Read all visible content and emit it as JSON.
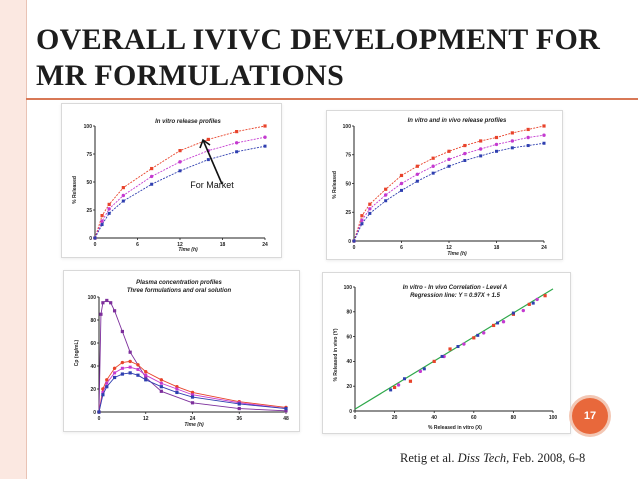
{
  "slide": {
    "title_line1": "OVERALL IVIVC DEVELOPMENT FOR",
    "title_line2": "MR FORMULATIONS",
    "page_number": "17",
    "citation_author": "Retig et al.",
    "citation_journal": "Diss Tech,",
    "citation_rest": "Feb. 2008, 6-8",
    "annotation": "For Market",
    "colors": {
      "red": "#e8432b",
      "magenta": "#c43ad0",
      "blue": "#2f3fb0",
      "purple": "#7d2f9c",
      "green": "#2ea84a",
      "accent": "#e8683b"
    }
  },
  "chart_data": [
    {
      "type": "line",
      "title": "In vitro release profiles",
      "xlabel": "Time (h)",
      "ylabel": "% Released",
      "xlim": [
        0,
        24
      ],
      "ylim": [
        0,
        100
      ],
      "xticks": [
        "0",
        "6",
        "12",
        "18",
        "24"
      ],
      "yticks": [
        "0",
        "25",
        "50",
        "75",
        "100"
      ],
      "series": [
        {
          "color": "#e8432b",
          "x": [
            0,
            1,
            2,
            4,
            8,
            12,
            16,
            20,
            24
          ],
          "y": [
            0,
            20,
            30,
            45,
            62,
            78,
            88,
            95,
            100
          ]
        },
        {
          "color": "#c43ad0",
          "x": [
            0,
            1,
            2,
            4,
            8,
            12,
            16,
            20,
            24
          ],
          "y": [
            0,
            15,
            26,
            38,
            55,
            68,
            78,
            85,
            90
          ]
        },
        {
          "color": "#2f3fb0",
          "x": [
            0,
            1,
            2,
            4,
            8,
            12,
            16,
            20,
            24
          ],
          "y": [
            0,
            12,
            22,
            33,
            48,
            60,
            70,
            77,
            82
          ]
        }
      ]
    },
    {
      "type": "line",
      "title": "In vitro and in vivo release profiles",
      "xlabel": "Time (h)",
      "ylabel": "% Released",
      "xlim": [
        0,
        24
      ],
      "ylim": [
        0,
        100
      ],
      "xticks": [
        "0",
        "6",
        "12",
        "18",
        "24"
      ],
      "yticks": [
        "0",
        "25",
        "50",
        "75",
        "100"
      ],
      "series": [
        {
          "color": "#e8432b",
          "x": [
            0,
            1,
            2,
            4,
            6,
            8,
            10,
            12,
            14,
            16,
            18,
            20,
            22,
            24
          ],
          "y": [
            0,
            22,
            32,
            45,
            57,
            65,
            72,
            78,
            83,
            87,
            90,
            94,
            97,
            100
          ]
        },
        {
          "color": "#c43ad0",
          "x": [
            0,
            1,
            2,
            4,
            6,
            8,
            10,
            12,
            14,
            16,
            18,
            20,
            22,
            24
          ],
          "y": [
            0,
            18,
            28,
            40,
            50,
            58,
            65,
            71,
            76,
            80,
            84,
            87,
            90,
            92
          ]
        },
        {
          "color": "#2f3fb0",
          "x": [
            0,
            1,
            2,
            4,
            6,
            8,
            10,
            12,
            14,
            16,
            18,
            20,
            22,
            24
          ],
          "y": [
            0,
            15,
            24,
            35,
            44,
            52,
            59,
            65,
            70,
            74,
            78,
            81,
            83,
            85
          ]
        }
      ]
    },
    {
      "type": "line",
      "title": "Plasma concentration profiles",
      "subtitle": "Three formulations and oral solution",
      "xlabel": "Time (h)",
      "ylabel": "Cp (ng/mL)",
      "xlim": [
        0,
        48
      ],
      "ylim": [
        0,
        100
      ],
      "xticks": [
        "0",
        "12",
        "24",
        "36",
        "48"
      ],
      "yticks": [
        "0",
        "20",
        "40",
        "60",
        "80",
        "100"
      ],
      "series": [
        {
          "color": "#7d2f9c",
          "x": [
            0,
            0.5,
            1,
            2,
            3,
            4,
            6,
            8,
            12,
            16,
            24,
            36,
            48
          ],
          "y": [
            0,
            85,
            95,
            97,
            95,
            88,
            70,
            52,
            30,
            18,
            8,
            3,
            1
          ]
        },
        {
          "color": "#e8432b",
          "x": [
            0,
            1,
            2,
            4,
            6,
            8,
            10,
            12,
            16,
            20,
            24,
            36,
            48
          ],
          "y": [
            0,
            20,
            28,
            38,
            43,
            44,
            41,
            35,
            28,
            22,
            17,
            9,
            4
          ]
        },
        {
          "color": "#c43ad0",
          "x": [
            0,
            1,
            2,
            4,
            6,
            8,
            10,
            12,
            16,
            20,
            24,
            36,
            48
          ],
          "y": [
            0,
            17,
            25,
            34,
            38,
            39,
            37,
            32,
            25,
            20,
            15,
            8,
            3
          ]
        },
        {
          "color": "#2f3fb0",
          "x": [
            0,
            1,
            2,
            4,
            6,
            8,
            10,
            12,
            16,
            20,
            24,
            36,
            48
          ],
          "y": [
            0,
            15,
            22,
            30,
            33,
            34,
            32,
            28,
            22,
            17,
            13,
            7,
            3
          ]
        }
      ]
    },
    {
      "type": "scatter",
      "title": "In vitro - In vivo Correlation - Level A",
      "subtitle": "Regression line:  Y = 0.97X + 1.5",
      "xlabel": "% Released in vitro (X)",
      "ylabel": "% Released in vivo (Y)",
      "xlim": [
        0,
        100
      ],
      "ylim": [
        0,
        100
      ],
      "xticks": [
        "0",
        "20",
        "40",
        "60",
        "80",
        "100"
      ],
      "yticks": [
        "0",
        "20",
        "40",
        "60",
        "80",
        "100"
      ],
      "regression": {
        "slope": 0.97,
        "intercept": 1.5,
        "color": "#2ea84a"
      },
      "series": [
        {
          "color": "#e8432b",
          "x": [
            20,
            28,
            40,
            48,
            60,
            70,
            80,
            88,
            96
          ],
          "y": [
            19,
            24,
            40,
            50,
            59,
            69,
            78,
            86,
            93
          ]
        },
        {
          "color": "#c43ad0",
          "x": [
            22,
            33,
            45,
            55,
            65,
            75,
            85,
            92
          ],
          "y": [
            21,
            32,
            44,
            54,
            63,
            72,
            81,
            90
          ]
        },
        {
          "color": "#2f3fb0",
          "x": [
            18,
            25,
            35,
            44,
            52,
            62,
            72,
            80,
            90
          ],
          "y": [
            17,
            26,
            34,
            44,
            52,
            61,
            71,
            79,
            87
          ]
        }
      ]
    }
  ]
}
